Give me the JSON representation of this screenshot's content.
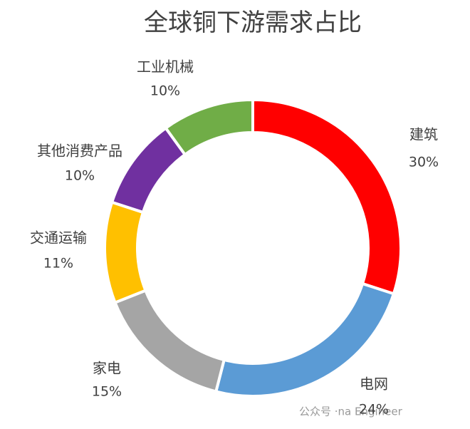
{
  "chart_data": {
    "type": "donut",
    "title": "全球铜下游需求占比",
    "categories": [
      "建筑",
      "电网",
      "家电",
      "交通运输",
      "其他消费产品",
      "工业机械"
    ],
    "values": [
      30,
      24,
      15,
      11,
      10,
      10
    ],
    "value_labels": [
      "30%",
      "24%",
      "15%",
      "11%",
      "10%",
      "10%"
    ],
    "colors": [
      "#ff0000",
      "#5b9bd5",
      "#a5a5a5",
      "#ffc000",
      "#7030a0",
      "#70ad47"
    ],
    "watermark": "公众号 ·na Engineer"
  }
}
